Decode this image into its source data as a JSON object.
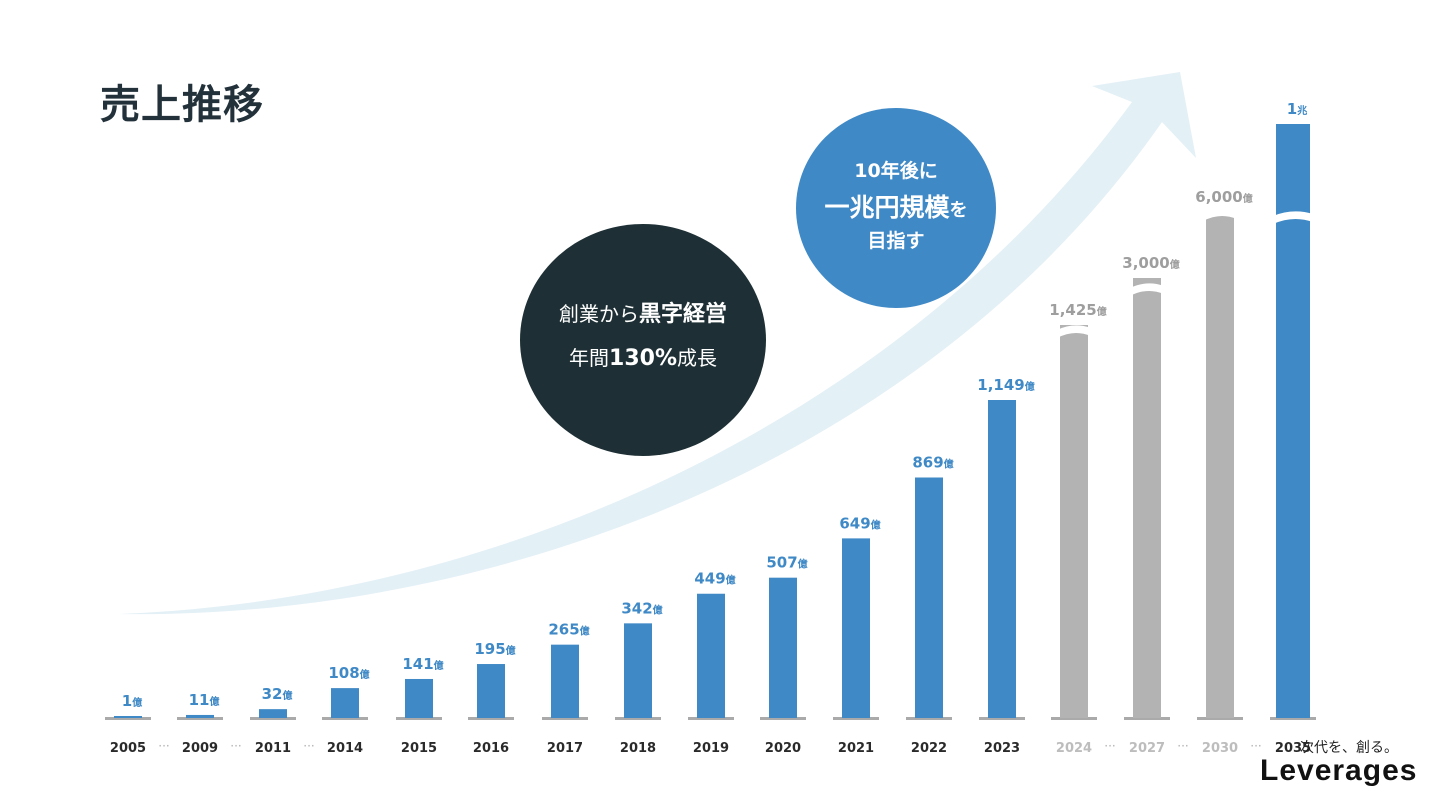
{
  "page": {
    "title": "売上推移"
  },
  "bubbles": {
    "dark": {
      "line1_prefix": "創業から",
      "line1_bold": "黒字経営",
      "line2_prefix": "年間",
      "line2_bold": "130%",
      "line2_suffix": "成長"
    },
    "blue": {
      "line1": "10年後に",
      "line2_main": "一兆円規模",
      "line2_suffix": "を",
      "line3": "目指す"
    }
  },
  "brand": {
    "tagline": "次代を、創る。",
    "logo": "Leverages"
  },
  "colors": {
    "actual": "#3f89c6",
    "forecast": "#b3b3b3",
    "arrow": "#e3f0f6",
    "dark_bubble": "#1e3035",
    "blue_bubble": "#3f89c6"
  },
  "chart_data": {
    "type": "bar",
    "title": "売上推移",
    "unit": "億",
    "categories": [
      "2005",
      "2009",
      "2011",
      "2014",
      "2015",
      "2016",
      "2017",
      "2018",
      "2019",
      "2020",
      "2021",
      "2022",
      "2023",
      "2024",
      "2027",
      "2030",
      "2035"
    ],
    "values": [
      1,
      11,
      32,
      108,
      141,
      195,
      265,
      342,
      449,
      507,
      649,
      869,
      1149,
      1425,
      3000,
      6000,
      10000
    ],
    "labels": [
      {
        "num": "1",
        "unit": "億"
      },
      {
        "num": "11",
        "unit": "億"
      },
      {
        "num": "32",
        "unit": "億"
      },
      {
        "num": "108",
        "unit": "億"
      },
      {
        "num": "141",
        "unit": "億"
      },
      {
        "num": "195",
        "unit": "億"
      },
      {
        "num": "265",
        "unit": "億"
      },
      {
        "num": "342",
        "unit": "億"
      },
      {
        "num": "449",
        "unit": "億"
      },
      {
        "num": "507",
        "unit": "億"
      },
      {
        "num": "649",
        "unit": "億"
      },
      {
        "num": "869",
        "unit": "億"
      },
      {
        "num": "1,149",
        "unit": "億"
      },
      {
        "num": "1,425",
        "unit": "億"
      },
      {
        "num": "3,000",
        "unit": "億"
      },
      {
        "num": "6,000",
        "unit": "億"
      },
      {
        "num": "1",
        "unit": "兆"
      }
    ],
    "status": [
      "actual",
      "actual",
      "actual",
      "actual",
      "actual",
      "actual",
      "actual",
      "actual",
      "actual",
      "actual",
      "actual",
      "actual",
      "actual",
      "forecast",
      "forecast",
      "forecast",
      "actual"
    ],
    "axis_breaks": [
      false,
      false,
      false,
      false,
      false,
      false,
      false,
      false,
      false,
      false,
      false,
      false,
      false,
      true,
      true,
      true,
      true
    ],
    "gap_after": [
      true,
      true,
      true,
      false,
      false,
      false,
      false,
      false,
      false,
      false,
      false,
      false,
      false,
      true,
      true,
      true,
      false
    ],
    "gap_marker": "···"
  }
}
